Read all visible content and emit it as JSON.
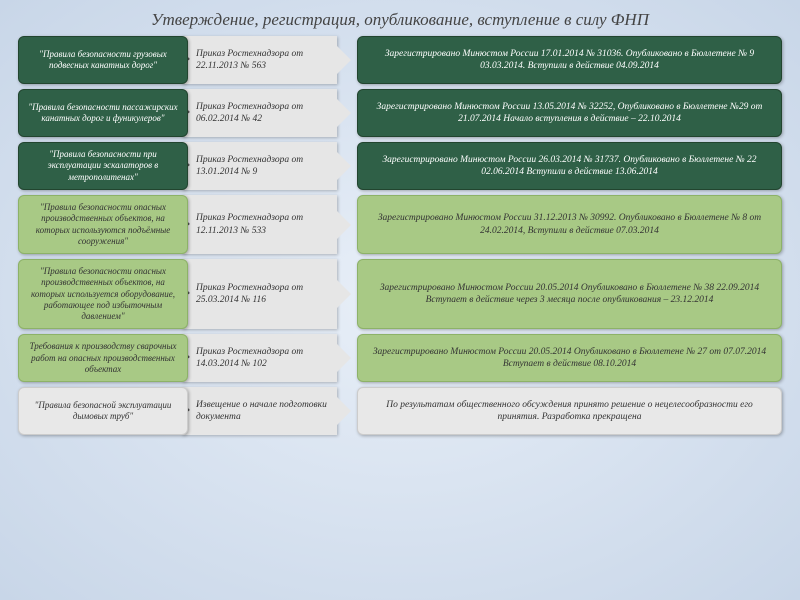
{
  "title": "Утверждение, регистрация, опубликование, вступление в силу ФНП",
  "rows": [
    {
      "col1": "\"Правила безопасности грузовых подвесных канатных дорог\"",
      "col1_class": "dark-green",
      "col2": "Приказ Ростехнадзора от 22.11.2013 № 563",
      "col3": "Зарегистрировано Минюстом России 17.01.2014 № 31036. Опубликовано в Бюллетене № 9 03.03.2014. Вступили в действие 04.09.2014",
      "col3_class": "dark-green",
      "row_class": "row-med"
    },
    {
      "col1": "\"Правила безопасности пассажирских канатных дорог и фуникулеров\"",
      "col1_class": "dark-green",
      "col2": "Приказ Ростехнадзора от 06.02.2014 № 42",
      "col3": "Зарегистрировано Минюстом России 13.05.2014 № 32252, Опубликовано в Бюллетене №29 от 21.07.2014 Начало вступления в действие – 22.10.2014",
      "col3_class": "dark-green",
      "row_class": "row-med"
    },
    {
      "col1": "\"Правила безопасности при эксплуатации эскалаторов в метрополитенах\"",
      "col1_class": "dark-green",
      "col2": "Приказ Ростехнадзора от 13.01.2014 № 9",
      "col3": "Зарегистрировано Минюстом России 26.03.2014 № 31737. Опубликовано в Бюллетене № 22 02.06.2014 Вступили в действие 13.06.2014",
      "col3_class": "dark-green",
      "row_class": "row-med"
    },
    {
      "col1": "\"Правила безопасности опасных производственных объектов, на которых используются подъёмные сооружения\"",
      "col1_class": "light-green",
      "col2": "Приказ Ростехнадзора от 12.11.2013 № 533",
      "col3": "Зарегистрировано Минюстом России 31.12.2013 № 30992. Опубликовано в Бюллетене № 8 от 24.02.2014, Вступили в действие 07.03.2014",
      "col3_class": "light-green",
      "row_class": "row-tall"
    },
    {
      "col1": "\"Правила безопасности опасных производственных объектов, на которых используется оборудование, работающее под избыточным давлением\"",
      "col1_class": "light-green",
      "col2": "Приказ Ростехнадзора от 25.03.2014 № 116",
      "col3": "Зарегистрировано Минюстом России 20.05.2014 Опубликовано в Бюллетене № 38 22.09.2014 Вступает в действие через 3 месяца после опубликования – 23.12.2014",
      "col3_class": "light-green",
      "row_class": "row-tall"
    },
    {
      "col1": "Требования к производству сварочных работ на опасных производственных объектах",
      "col1_class": "light-green",
      "col2": "Приказ Ростехнадзора от 14.03.2014 № 102",
      "col3": "Зарегистрировано Минюстом России 20.05.2014 Опубликовано в Бюллетене № 27 от 07.07.2014 Вступает в действие 08.10.2014",
      "col3_class": "light-green",
      "row_class": "row-med"
    },
    {
      "col1": "\"Правила безопасной эксплуатации дымовых труб\"",
      "col1_class": "light-gray-box",
      "col2": "Извещение о начале подготовки документа",
      "col3": "По результатам общественного обсуждения принято решение о нецелесообразности его принятия. Разработка прекращена",
      "col3_class": "light-gray-box",
      "row_class": "row-med"
    }
  ],
  "colors": {
    "dark_green": "#2f6047",
    "light_green": "#a8c985",
    "light_gray": "#e6e6e6",
    "background_start": "#e8eff8",
    "background_end": "#c8d6e8"
  }
}
